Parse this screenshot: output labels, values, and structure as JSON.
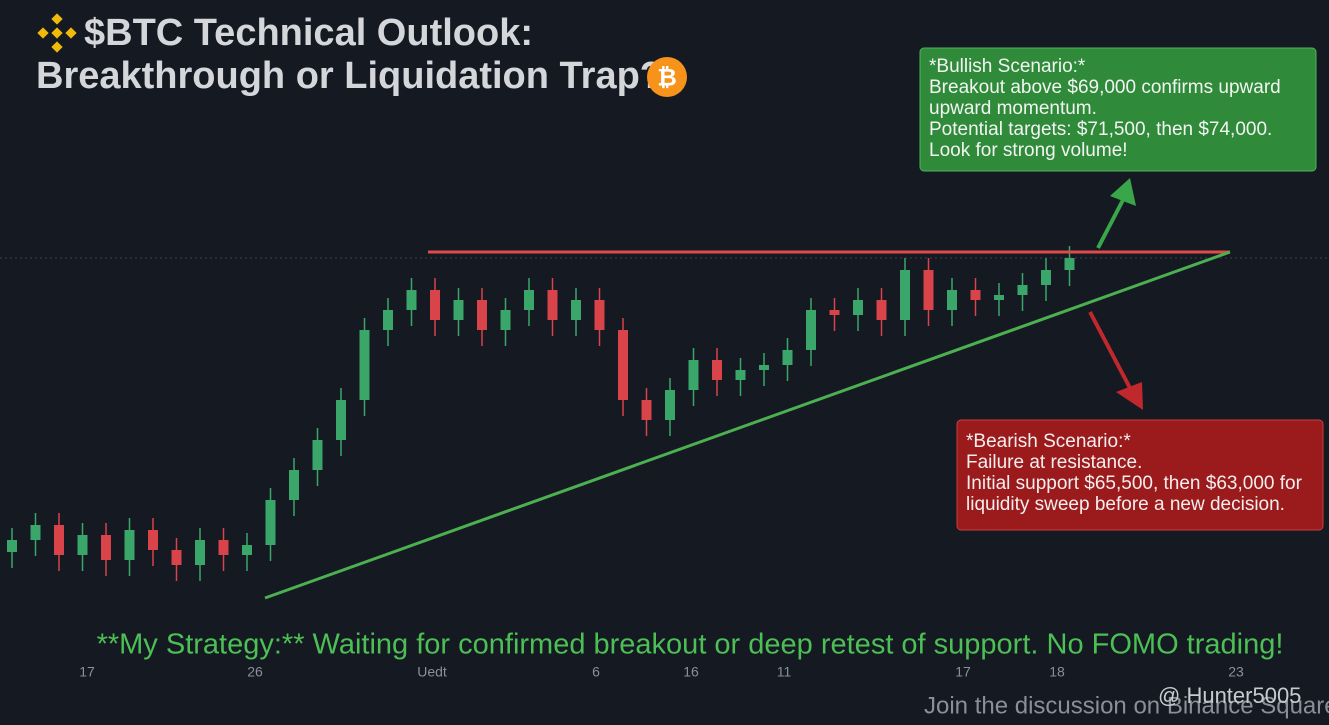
{
  "chart_data": {
    "type": "candlestick",
    "title": [
      "$BTC Technical Outlook:",
      "Breakthrough or Liquidation Trap?"
    ],
    "open": [
      61500,
      61800,
      62175,
      61425,
      61925,
      61300,
      62050,
      61550,
      61175,
      61800,
      61425,
      61675,
      62800,
      63550,
      64300,
      65300,
      67050,
      67550,
      68050,
      67300,
      67800,
      67050,
      67550,
      68050,
      67300,
      67800,
      67050,
      65300,
      64800,
      65550,
      66300,
      65800,
      66050,
      66175,
      66550,
      67550,
      67425,
      67800,
      67300,
      68550,
      67550,
      68050,
      67800,
      67925,
      68175,
      68550
    ],
    "high": [
      62100,
      62475,
      62475,
      62225,
      62225,
      62350,
      62350,
      61850,
      62100,
      62100,
      61975,
      63100,
      63850,
      64600,
      65600,
      67350,
      67850,
      68350,
      68350,
      68100,
      68100,
      67850,
      68350,
      68350,
      68100,
      68100,
      67350,
      65600,
      65850,
      66600,
      66600,
      66350,
      66475,
      66850,
      67850,
      67850,
      68100,
      68100,
      68850,
      68850,
      68350,
      68350,
      68225,
      68475,
      68850,
      69150
    ],
    "low": [
      61100,
      61400,
      61025,
      61025,
      60900,
      60900,
      61150,
      60775,
      60775,
      61025,
      61025,
      61275,
      62400,
      63150,
      63900,
      64900,
      66650,
      67150,
      66900,
      66900,
      66650,
      66650,
      67150,
      66900,
      66900,
      66650,
      64900,
      64400,
      64400,
      65150,
      65400,
      65400,
      65650,
      65775,
      66150,
      67025,
      67025,
      66900,
      66900,
      67150,
      67150,
      67400,
      67400,
      67525,
      67775,
      68150
    ],
    "close": [
      61800,
      62175,
      61425,
      61925,
      61300,
      62050,
      61550,
      61175,
      61800,
      61425,
      61675,
      62800,
      63550,
      64300,
      65300,
      67050,
      67550,
      68050,
      67300,
      67800,
      67050,
      67550,
      68050,
      67300,
      67800,
      67050,
      65300,
      64800,
      65550,
      66300,
      65800,
      66050,
      66175,
      66550,
      67550,
      67425,
      67800,
      67300,
      68550,
      67550,
      68050,
      67800,
      67925,
      68175,
      68550,
      68850
    ],
    "up_color": "#3aa66a",
    "down_color": "#d9434a",
    "ylim": [
      57175,
      75300
    ],
    "resistance": 69000,
    "support": [
      60350,
      69000
    ],
    "xtick_labels": [
      "17",
      "26",
      "Uedt",
      "6",
      "16",
      "11",
      "17",
      "18",
      "23"
    ],
    "bullish": [
      "*Bullish Scenario:*",
      "Breakout above $69,000 confirms upward",
      "upward momentum.",
      "Potential targets: $71,500, then $74,000.",
      "Look for strong volume!"
    ],
    "bearish": [
      "*Bearish Scenario:*",
      "Failure at resistance.",
      "Initial support $65,500, then $63,000 for",
      "liquidity sweep before a new decision."
    ],
    "strategy": "**My Strategy:** Waiting for confirmed breakout or deep retest of support. No FOMO trading!",
    "footer": "Join the discussion on Binance Square",
    "handle": "@ Hunter5005"
  }
}
